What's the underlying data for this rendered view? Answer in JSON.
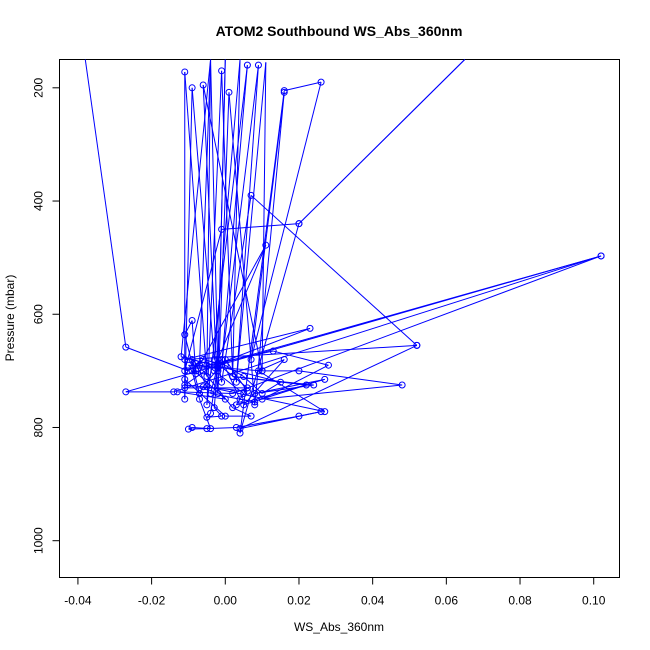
{
  "chart_data": {
    "type": "line",
    "title": "ATOM2 Southbound WS_Abs_360nm",
    "xlabel": "WS_Abs_360nm",
    "ylabel": "Pressure (mbar)",
    "xlim": [
      -0.045,
      0.107
    ],
    "ylim": [
      1065,
      150
    ],
    "y_reversed": true,
    "x_ticks": [
      -0.04,
      -0.02,
      0.0,
      0.02,
      0.04,
      0.06,
      0.08,
      0.1
    ],
    "x_tick_labels": [
      "-0.04",
      "-0.02",
      "0.00",
      "0.02",
      "0.04",
      "0.06",
      "0.08",
      "0.10"
    ],
    "y_ticks": [
      200,
      400,
      600,
      800,
      1000
    ],
    "y_tick_labels": [
      "200",
      "400",
      "600",
      "800",
      "1000"
    ],
    "series_color": "#0000ff",
    "grid": false,
    "legend": "none",
    "points": [
      [
        -0.038,
        150
      ],
      [
        -0.027,
        658
      ],
      [
        -0.01,
        700
      ],
      [
        -0.006,
        680
      ],
      [
        0.0,
        690
      ],
      [
        0.005,
        710
      ],
      [
        0.01,
        740
      ],
      [
        0.015,
        720
      ],
      [
        -0.012,
        675
      ],
      [
        -0.004,
        150
      ],
      [
        -0.007,
        690
      ],
      [
        -0.002,
        695
      ],
      [
        0.0,
        150
      ],
      [
        -0.002,
        700
      ],
      [
        -0.004,
        150
      ],
      [
        -0.005,
        710
      ],
      [
        -0.011,
        172
      ],
      [
        -0.011,
        750
      ],
      [
        -0.009,
        200
      ],
      [
        -0.003,
        680
      ],
      [
        0.004,
        150
      ],
      [
        0.002,
        710
      ],
      [
        -0.001,
        170
      ],
      [
        -0.005,
        760
      ],
      [
        0.006,
        160
      ],
      [
        -0.001,
        690
      ],
      [
        0.009,
        160
      ],
      [
        0.003,
        720
      ],
      [
        0.011,
        155
      ],
      [
        0.01,
        700
      ],
      [
        -0.006,
        195
      ],
      [
        -0.002,
        740
      ],
      [
        0.001,
        208
      ],
      [
        0.008,
        760
      ],
      [
        0.016,
        208
      ],
      [
        0.007,
        680
      ],
      [
        0.026,
        190
      ],
      [
        0.016,
        205
      ],
      [
        0.004,
        810
      ],
      [
        0.02,
        440
      ],
      [
        0.065,
        150
      ],
      [
        0.02,
        440
      ],
      [
        -0.001,
        450
      ],
      [
        -0.011,
        700
      ],
      [
        -0.007,
        690
      ],
      [
        0.011,
        478
      ],
      [
        -0.002,
        680
      ],
      [
        -0.001,
        720
      ],
      [
        0.007,
        390
      ],
      [
        0.052,
        655
      ],
      [
        -0.011,
        680
      ],
      [
        0.023,
        625
      ],
      [
        -0.003,
        690
      ],
      [
        0.102,
        497
      ],
      [
        -0.027,
        737
      ],
      [
        -0.014,
        737
      ],
      [
        0.102,
        497
      ],
      [
        0.002,
        740
      ],
      [
        -0.013,
        737
      ],
      [
        0.0,
        750
      ],
      [
        -0.01,
        690
      ],
      [
        0.01,
        700
      ],
      [
        0.02,
        700
      ],
      [
        0.048,
        725
      ],
      [
        0.01,
        750
      ],
      [
        0.028,
        690
      ],
      [
        0.013,
        665
      ],
      [
        -0.005,
        690
      ],
      [
        -0.003,
        700
      ],
      [
        0.005,
        740
      ],
      [
        0.003,
        760
      ],
      [
        0.027,
        715
      ],
      [
        0.008,
        740
      ],
      [
        0.024,
        725
      ],
      [
        0.002,
        710
      ],
      [
        0.022,
        725
      ],
      [
        0.005,
        760
      ],
      [
        0.016,
        680
      ],
      [
        0.009,
        700
      ],
      [
        0.027,
        772
      ],
      [
        -0.005,
        728
      ],
      [
        -0.008,
        687
      ],
      [
        -0.008,
        705
      ],
      [
        -0.009,
        611
      ],
      [
        -0.011,
        636
      ],
      [
        -0.007,
        740
      ],
      [
        -0.006,
        728
      ],
      [
        0.0,
        680
      ],
      [
        0.006,
        736
      ],
      [
        -0.011,
        725
      ],
      [
        -0.001,
        680
      ],
      [
        0.004,
        750
      ],
      [
        0.008,
        755
      ],
      [
        -0.004,
        740
      ],
      [
        -0.002,
        690
      ],
      [
        -0.004,
        775
      ],
      [
        -0.005,
        782
      ],
      [
        -0.001,
        780
      ],
      [
        -0.003,
        765
      ],
      [
        -0.002,
        688
      ],
      [
        0.006,
        730
      ],
      [
        -0.011,
        730
      ],
      [
        -0.011,
        715
      ],
      [
        0.0,
        780
      ],
      [
        0.007,
        780
      ],
      [
        0.002,
        765
      ],
      [
        -0.006,
        700
      ],
      [
        -0.009,
        680
      ],
      [
        -0.008,
        700
      ],
      [
        -0.009,
        700
      ],
      [
        -0.007,
        750
      ],
      [
        -0.004,
        802
      ],
      [
        -0.009,
        800
      ],
      [
        -0.01,
        803
      ],
      [
        -0.005,
        802
      ],
      [
        0.003,
        800
      ],
      [
        0.02,
        780
      ],
      [
        0.026,
        772
      ],
      [
        0.004,
        802
      ],
      [
        0.052,
        655
      ]
    ]
  }
}
